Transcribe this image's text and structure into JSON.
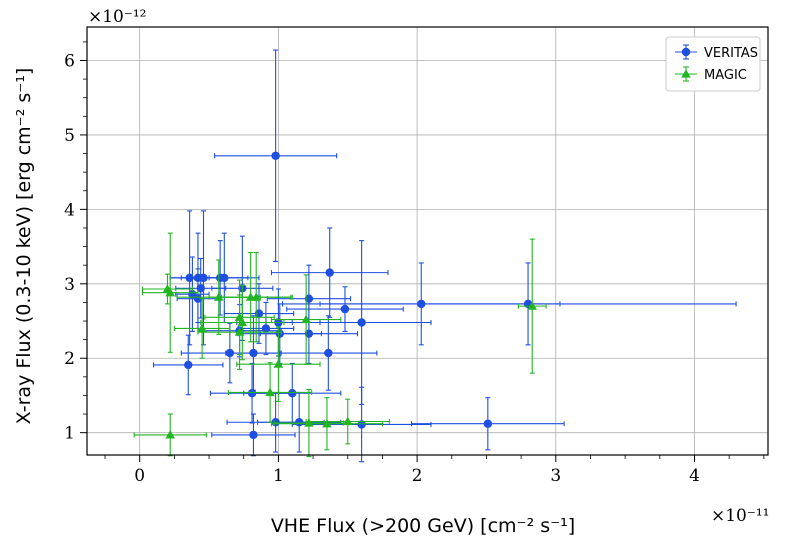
{
  "chart_data": {
    "type": "scatter",
    "xlabel": "VHE Flux (>200 GeV) [cm⁻² s⁻¹]",
    "ylabel": "X-ray Flux (0.3-10 keV) [erg cm⁻² s⁻¹]",
    "x_exponent": "×10⁻¹¹",
    "y_exponent": "×10⁻¹²",
    "xlim": [
      -0.38,
      4.53
    ],
    "ylim": [
      0.7,
      6.45
    ],
    "x_ticks": [
      0,
      1,
      2,
      3,
      4
    ],
    "y_ticks": [
      1,
      2,
      3,
      4,
      5,
      6
    ],
    "grid": true,
    "legend_position": "top-right",
    "series": [
      {
        "name": "VERITAS",
        "marker": "circle",
        "color": "#1f4fe0",
        "points": [
          {
            "x": 0.98,
            "y": 4.72,
            "xerr": 0.44,
            "yerr": 1.42
          },
          {
            "x": 0.36,
            "y": 3.08,
            "xerr": 0.14,
            "yerr": 0.9
          },
          {
            "x": 0.42,
            "y": 3.08,
            "xerr": 0.2,
            "yerr": 0.6
          },
          {
            "x": 0.46,
            "y": 3.08,
            "xerr": 0.16,
            "yerr": 0.9
          },
          {
            "x": 0.58,
            "y": 3.08,
            "xerr": 0.2,
            "yerr": 0.5
          },
          {
            "x": 0.61,
            "y": 3.08,
            "xerr": 0.25,
            "yerr": 0.6
          },
          {
            "x": 0.74,
            "y": 2.94,
            "xerr": 0.22,
            "yerr": 0.7
          },
          {
            "x": 0.38,
            "y": 2.86,
            "xerr": 0.12,
            "yerr": 0.5
          },
          {
            "x": 0.42,
            "y": 2.8,
            "xerr": 0.15,
            "yerr": 0.4
          },
          {
            "x": 0.44,
            "y": 2.94,
            "xerr": 0.18,
            "yerr": 0.4
          },
          {
            "x": 1.37,
            "y": 3.15,
            "xerr": 0.42,
            "yerr": 0.6
          },
          {
            "x": 1.22,
            "y": 2.8,
            "xerr": 0.3,
            "yerr": 0.45
          },
          {
            "x": 1.48,
            "y": 2.66,
            "xerr": 0.42,
            "yerr": 0.3
          },
          {
            "x": 1.6,
            "y": 2.48,
            "xerr": 0.5,
            "yerr": 1.1
          },
          {
            "x": 2.03,
            "y": 2.73,
            "xerr": 1.0,
            "yerr": 0.55
          },
          {
            "x": 2.8,
            "y": 2.73,
            "xerr": 1.5,
            "yerr": 0.55
          },
          {
            "x": 0.86,
            "y": 2.6,
            "xerr": 0.25,
            "yerr": 0.4
          },
          {
            "x": 1.0,
            "y": 2.48,
            "xerr": 0.3,
            "yerr": 0.45
          },
          {
            "x": 0.91,
            "y": 2.4,
            "xerr": 0.2,
            "yerr": 0.35
          },
          {
            "x": 0.72,
            "y": 2.37,
            "xerr": 0.3,
            "yerr": 0.35
          },
          {
            "x": 1.22,
            "y": 2.33,
            "xerr": 0.35,
            "yerr": 0.4
          },
          {
            "x": 1.01,
            "y": 2.33,
            "xerr": 0.3,
            "yerr": 0.4
          },
          {
            "x": 0.65,
            "y": 2.07,
            "xerr": 0.35,
            "yerr": 0.4
          },
          {
            "x": 0.82,
            "y": 2.07,
            "xerr": 0.2,
            "yerr": 0.5
          },
          {
            "x": 1.36,
            "y": 2.07,
            "xerr": 0.35,
            "yerr": 0.5
          },
          {
            "x": 0.35,
            "y": 1.91,
            "xerr": 0.25,
            "yerr": 0.4
          },
          {
            "x": 0.81,
            "y": 1.53,
            "xerr": 0.3,
            "yerr": 0.4
          },
          {
            "x": 1.1,
            "y": 1.53,
            "xerr": 0.35,
            "yerr": 0.4
          },
          {
            "x": 0.98,
            "y": 1.14,
            "xerr": 0.35,
            "yerr": 0.4
          },
          {
            "x": 1.15,
            "y": 1.14,
            "xerr": 0.3,
            "yerr": 0.4
          },
          {
            "x": 1.6,
            "y": 1.11,
            "xerr": 0.5,
            "yerr": 0.5
          },
          {
            "x": 2.51,
            "y": 1.12,
            "xerr": 0.55,
            "yerr": 0.35
          },
          {
            "x": 0.82,
            "y": 0.97,
            "xerr": 0.3,
            "yerr": 0.28
          }
        ]
      },
      {
        "name": "MAGIC",
        "marker": "triangle",
        "color": "#22b422",
        "points": [
          {
            "x": 0.2,
            "y": 2.93,
            "xerr": 0.18,
            "yerr": 0.2
          },
          {
            "x": 0.22,
            "y": 2.88,
            "xerr": 0.2,
            "yerr": 0.8
          },
          {
            "x": 0.57,
            "y": 2.82,
            "xerr": 0.3,
            "yerr": 0.5
          },
          {
            "x": 0.8,
            "y": 2.82,
            "xerr": 0.3,
            "yerr": 0.6
          },
          {
            "x": 0.84,
            "y": 2.82,
            "xerr": 0.25,
            "yerr": 0.6
          },
          {
            "x": 0.74,
            "y": 2.48,
            "xerr": 0.3,
            "yerr": 0.5
          },
          {
            "x": 0.72,
            "y": 2.55,
            "xerr": 0.25,
            "yerr": 0.5
          },
          {
            "x": 0.45,
            "y": 2.4,
            "xerr": 0.2,
            "yerr": 0.4
          },
          {
            "x": 1.2,
            "y": 2.52,
            "xerr": 0.25,
            "yerr": 0.6
          },
          {
            "x": 0.72,
            "y": 2.35,
            "xerr": 0.3,
            "yerr": 0.5
          },
          {
            "x": 1.0,
            "y": 1.92,
            "xerr": 0.3,
            "yerr": 0.5
          },
          {
            "x": 0.94,
            "y": 1.54,
            "xerr": 0.3,
            "yerr": 0.4
          },
          {
            "x": 2.83,
            "y": 2.7,
            "xerr": 0.1,
            "yerr": 0.9
          },
          {
            "x": 1.22,
            "y": 1.13,
            "xerr": 0.25,
            "yerr": 0.45
          },
          {
            "x": 1.35,
            "y": 1.12,
            "xerr": 0.4,
            "yerr": 0.35
          },
          {
            "x": 1.5,
            "y": 1.15,
            "xerr": 0.3,
            "yerr": 0.3
          },
          {
            "x": 0.22,
            "y": 0.97,
            "xerr": 0.26,
            "yerr": 0.28
          }
        ]
      }
    ]
  }
}
